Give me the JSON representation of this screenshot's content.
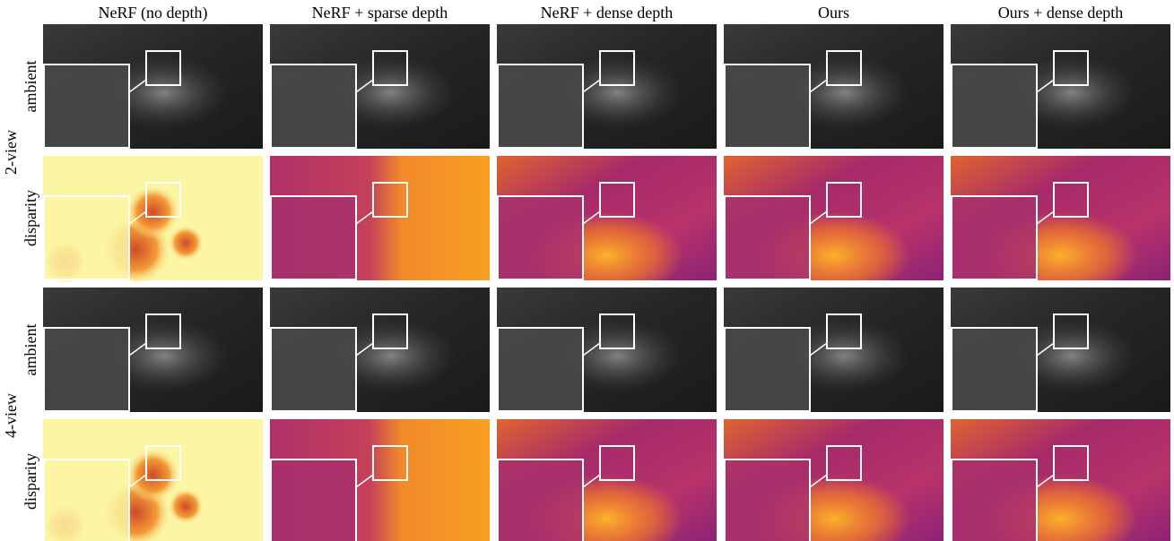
{
  "columns": [
    "NeRF (no depth)",
    "NeRF + sparse depth",
    "NeRF + dense depth",
    "Ours",
    "Ours + dense depth"
  ],
  "groups": [
    {
      "label": "2-view",
      "rows": [
        "ambient",
        "disparity"
      ]
    },
    {
      "label": "4-view",
      "rows": [
        "ambient",
        "disparity"
      ]
    }
  ]
}
